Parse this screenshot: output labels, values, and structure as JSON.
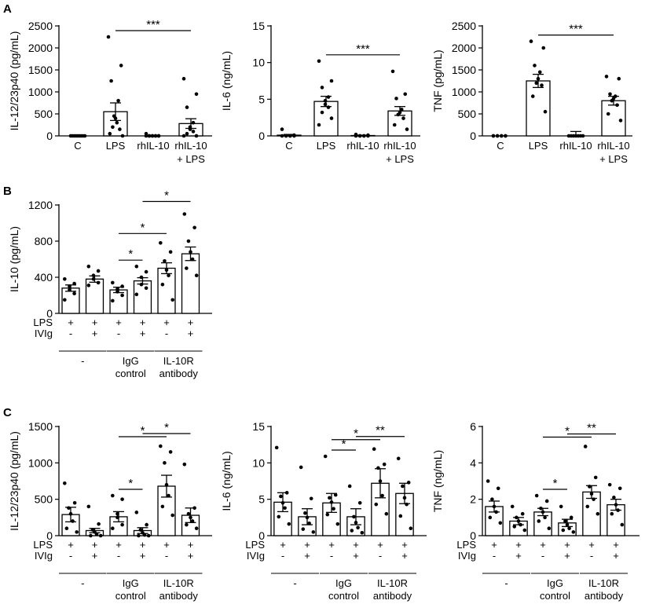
{
  "panels": [
    {
      "letter": "A"
    },
    {
      "letter": "B"
    },
    {
      "letter": "C"
    }
  ],
  "chart_data": [
    {
      "type": "bar",
      "panel": "A",
      "ylabel": "IL-12/23p40 (pg/mL)",
      "ylim": [
        0,
        2500
      ],
      "yticks": [
        0,
        500,
        1000,
        1500,
        2000,
        2500
      ],
      "categories": [
        [
          "C"
        ],
        [
          "LPS"
        ],
        [
          "rhIL-10"
        ],
        [
          "rhIL-10",
          "+ LPS"
        ]
      ],
      "means": [
        0,
        550,
        0,
        280
      ],
      "sem": [
        0,
        200,
        0,
        110
      ],
      "points": [
        [
          0,
          0,
          0,
          0,
          0,
          0,
          0,
          0,
          0
        ],
        [
          2250,
          1600,
          1250,
          800,
          450,
          400,
          300,
          200,
          150,
          50,
          0
        ],
        [
          0,
          0,
          0,
          0,
          0,
          0,
          0,
          0,
          0,
          50
        ],
        [
          1300,
          950,
          650,
          300,
          200,
          150,
          100,
          50,
          0,
          0
        ]
      ],
      "significance": [
        {
          "from": 1,
          "to": 3,
          "label": "***"
        }
      ]
    },
    {
      "type": "bar",
      "panel": "A",
      "ylabel": "IL-6 (ng/mL)",
      "ylim": [
        0,
        15
      ],
      "yticks": [
        0,
        5,
        10,
        15
      ],
      "categories": [
        [
          "C"
        ],
        [
          "LPS"
        ],
        [
          "rhIL-10"
        ],
        [
          "rhIL-10",
          "+ LPS"
        ]
      ],
      "means": [
        0.1,
        4.7,
        0.05,
        3.4
      ],
      "sem": [
        0.1,
        0.7,
        0.05,
        0.6
      ],
      "points": [
        [
          0.9,
          0.1,
          0,
          0,
          0,
          0,
          0,
          0
        ],
        [
          10.2,
          7.5,
          6.6,
          5.3,
          4.8,
          4.3,
          3.9,
          3.2,
          2.4,
          1.5
        ],
        [
          0.2,
          0.1,
          0,
          0,
          0,
          0,
          0,
          0
        ],
        [
          8.8,
          5.7,
          5.1,
          3.6,
          3.2,
          2.9,
          2.4,
          1.5,
          0.9
        ]
      ],
      "significance": [
        {
          "from": 1,
          "to": 3,
          "label": "***"
        }
      ]
    },
    {
      "type": "bar",
      "panel": "A",
      "ylabel": "TNF (pg/mL)",
      "ylim": [
        0,
        2500
      ],
      "yticks": [
        0,
        500,
        1000,
        1500,
        2000,
        2500
      ],
      "categories": [
        [
          "C"
        ],
        [
          "LPS"
        ],
        [
          "rhIL-10"
        ],
        [
          "rhIL-10",
          "+ LPS"
        ]
      ],
      "means": [
        0,
        1250,
        0,
        800
      ],
      "sem": [
        0,
        150,
        100,
        100
      ],
      "points": [
        [
          0,
          0,
          0,
          0,
          0,
          0,
          0,
          0
        ],
        [
          2150,
          2000,
          1600,
          1450,
          1300,
          1200,
          1150,
          900,
          550
        ],
        [
          0,
          0,
          0,
          0,
          0,
          0,
          0
        ],
        [
          1350,
          1300,
          950,
          900,
          850,
          800,
          700,
          500,
          350
        ]
      ],
      "significance": [
        {
          "from": 1,
          "to": 3,
          "label": "***"
        }
      ]
    },
    {
      "type": "bar",
      "panel": "B",
      "ylabel": "IL-10 (pg/mL)",
      "ylim": [
        0,
        1200
      ],
      "yticks": [
        0,
        400,
        800,
        1200
      ],
      "means": [
        280,
        380,
        260,
        360,
        500,
        660
      ],
      "sem": [
        35,
        35,
        30,
        35,
        60,
        75
      ],
      "points": [
        [
          380,
          330,
          300,
          260,
          220,
          150
        ],
        [
          520,
          470,
          420,
          380,
          340,
          310
        ],
        [
          340,
          300,
          270,
          240,
          200,
          140
        ],
        [
          520,
          460,
          400,
          320,
          280,
          210
        ],
        [
          780,
          680,
          580,
          480,
          420,
          320,
          150
        ],
        [
          1100,
          950,
          800,
          680,
          600,
          500,
          420
        ]
      ],
      "significance": [
        {
          "from": 2,
          "to": 3,
          "label": "*"
        },
        {
          "from": 2,
          "to": 4,
          "label": "*"
        },
        {
          "from": 3,
          "to": 5,
          "label": "*"
        }
      ],
      "rows": [
        {
          "label": "LPS",
          "marks": [
            "+",
            "+",
            "+",
            "+",
            "+",
            "+"
          ]
        },
        {
          "label": "IVIg",
          "marks": [
            "-",
            "+",
            "-",
            "+",
            "-",
            "+"
          ]
        }
      ],
      "groups": [
        {
          "label": [
            "-"
          ],
          "from": 0,
          "to": 1
        },
        {
          "label": [
            "IgG",
            "control"
          ],
          "from": 2,
          "to": 3
        },
        {
          "label": [
            "IL-10R",
            "antibody"
          ],
          "from": 4,
          "to": 5
        }
      ]
    },
    {
      "type": "bar",
      "panel": "C",
      "ylabel": "IL-12/23p40 (pg/mL)",
      "ylim": [
        0,
        1500
      ],
      "yticks": [
        0,
        500,
        1000,
        1500
      ],
      "means": [
        290,
        70,
        260,
        70,
        680,
        280
      ],
      "sem": [
        100,
        30,
        70,
        40,
        150,
        100
      ],
      "points": [
        [
          720,
          450,
          380,
          300,
          200,
          100,
          50
        ],
        [
          400,
          160,
          80,
          50,
          20,
          0,
          0
        ],
        [
          550,
          500,
          300,
          250,
          150,
          100
        ],
        [
          320,
          150,
          80,
          40,
          10,
          0,
          0
        ],
        [
          1230,
          1150,
          1000,
          700,
          550,
          400,
          280
        ],
        [
          980,
          380,
          300,
          250,
          200,
          150,
          100
        ]
      ],
      "significance": [
        {
          "from": 2,
          "to": 3,
          "label": "*"
        },
        {
          "from": 2,
          "to": 4,
          "label": "*"
        },
        {
          "from": 3,
          "to": 5,
          "label": "*"
        }
      ],
      "rows": [
        {
          "label": "LPS",
          "marks": [
            "+",
            "+",
            "+",
            "+",
            "+",
            "+"
          ]
        },
        {
          "label": "IVIg",
          "marks": [
            "-",
            "+",
            "-",
            "+",
            "-",
            "+"
          ]
        }
      ],
      "groups": [
        {
          "label": [
            "-"
          ],
          "from": 0,
          "to": 1
        },
        {
          "label": [
            "IgG",
            "control"
          ],
          "from": 2,
          "to": 3
        },
        {
          "label": [
            "IL-10R",
            "antibody"
          ],
          "from": 4,
          "to": 5
        }
      ]
    },
    {
      "type": "bar",
      "panel": "C",
      "ylabel": "IL-6 (ng/mL)",
      "ylim": [
        0,
        15
      ],
      "yticks": [
        0,
        5,
        10,
        15
      ],
      "means": [
        4.6,
        2.6,
        4.5,
        2.6,
        7.2,
        5.8
      ],
      "sem": [
        1.3,
        1.1,
        1.3,
        1.1,
        2.0,
        1.4
      ],
      "points": [
        [
          12.1,
          5.9,
          5.4,
          4.5,
          3.8,
          2.6,
          1.6
        ],
        [
          9.4,
          5.1,
          3.1,
          2.5,
          1.7,
          0.9,
          0.5
        ],
        [
          10.9,
          5.6,
          5.2,
          4.6,
          3.7,
          2.9,
          1.6
        ],
        [
          6.8,
          4.5,
          2.6,
          1.8,
          1.1,
          0.7,
          0.4
        ],
        [
          11.9,
          9.8,
          9.3,
          7.5,
          5.5,
          4.3,
          3.0
        ],
        [
          10.6,
          7.3,
          6.8,
          5.2,
          4.3,
          2.7,
          1.0
        ]
      ],
      "significance": [
        {
          "from": 2,
          "to": 3,
          "label": "*"
        },
        {
          "from": 2,
          "to": 4,
          "label": "*"
        },
        {
          "from": 3,
          "to": 5,
          "label": "**"
        }
      ],
      "rows": [
        {
          "label": "LPS",
          "marks": [
            "+",
            "+",
            "+",
            "+",
            "+",
            "+"
          ]
        },
        {
          "label": "IVIg",
          "marks": [
            "-",
            "+",
            "-",
            "+",
            "-",
            "+"
          ]
        }
      ],
      "groups": [
        {
          "label": [
            "-"
          ],
          "from": 0,
          "to": 1
        },
        {
          "label": [
            "IgG",
            "control"
          ],
          "from": 2,
          "to": 3
        },
        {
          "label": [
            "IL-10R",
            "antibody"
          ],
          "from": 4,
          "to": 5
        }
      ]
    },
    {
      "type": "bar",
      "panel": "C",
      "ylabel": "TNF (ng/mL)",
      "ylim": [
        0,
        6
      ],
      "yticks": [
        0,
        2,
        4,
        6
      ],
      "means": [
        1.6,
        0.8,
        1.3,
        0.7,
        2.4,
        1.7
      ],
      "sem": [
        0.3,
        0.2,
        0.2,
        0.2,
        0.35,
        0.3
      ],
      "points": [
        [
          3.0,
          2.6,
          2.0,
          1.6,
          1.3,
          1.0,
          0.7
        ],
        [
          1.6,
          1.2,
          1.0,
          0.8,
          0.6,
          0.5,
          0.3
        ],
        [
          2.2,
          1.9,
          1.5,
          1.3,
          1.0,
          0.8,
          0.4
        ],
        [
          1.6,
          1.0,
          0.8,
          0.6,
          0.4,
          0.3,
          0.2
        ],
        [
          4.9,
          3.2,
          2.7,
          2.3,
          2.0,
          1.6,
          1.2
        ],
        [
          2.8,
          2.6,
          2.1,
          1.7,
          1.4,
          1.2,
          0.6
        ]
      ],
      "significance": [
        {
          "from": 2,
          "to": 3,
          "label": "*"
        },
        {
          "from": 2,
          "to": 4,
          "label": "*"
        },
        {
          "from": 3,
          "to": 5,
          "label": "**"
        }
      ],
      "rows": [
        {
          "label": "LPS",
          "marks": [
            "+",
            "+",
            "+",
            "+",
            "+",
            "+"
          ]
        },
        {
          "label": "IVIg",
          "marks": [
            "-",
            "+",
            "-",
            "+",
            "-",
            "+"
          ]
        }
      ],
      "groups": [
        {
          "label": [
            "-"
          ],
          "from": 0,
          "to": 1
        },
        {
          "label": [
            "IgG",
            "control"
          ],
          "from": 2,
          "to": 3
        },
        {
          "label": [
            "IL-10R",
            "antibody"
          ],
          "from": 4,
          "to": 5
        }
      ]
    }
  ]
}
